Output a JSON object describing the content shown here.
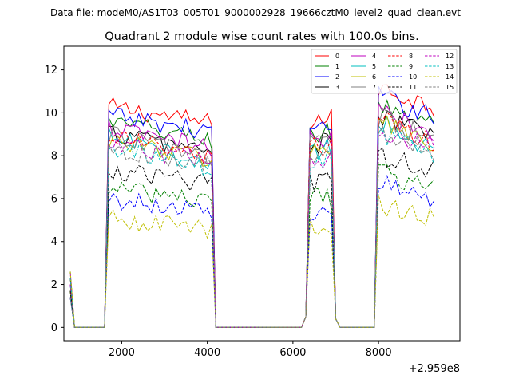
{
  "suptitle": "Data file: modeM0/AS1T03_005T01_9000002928_19666cztM0_level2_quad_clean.evt",
  "chart_data": {
    "type": "line",
    "title": "Quadrant 2 module wise count rates with 100.0s bins.",
    "xlabel": "",
    "ylabel": "",
    "xlim": [
      650,
      9900
    ],
    "ylim": [
      -0.62,
      13.1
    ],
    "x_offset_label": "+2.959e8",
    "xticks": [
      2000,
      4000,
      6000,
      8000
    ],
    "xtick_labels": [
      "2000",
      "4000",
      "6000",
      "8000"
    ],
    "yticks": [
      0,
      2,
      4,
      6,
      8,
      10,
      12
    ],
    "ytick_labels": [
      "0",
      "2",
      "4",
      "6",
      "8",
      "10",
      "12"
    ],
    "grid": false,
    "legend_position": "top-right",
    "segments": [
      {
        "start": 800,
        "end": 4100
      },
      {
        "start": 6400,
        "end": 6900
      },
      {
        "start": 8050,
        "end": 9350
      }
    ],
    "series": [
      {
        "name": "0",
        "color": "#ff0000",
        "dash": "solid",
        "peak": 10.3,
        "drift": 0.8
      },
      {
        "name": "1",
        "color": "#008000",
        "dash": "solid",
        "peak": 9.6,
        "drift": 0.9
      },
      {
        "name": "2",
        "color": "#0000ff",
        "dash": "solid",
        "peak": 9.9,
        "drift": 0.8
      },
      {
        "name": "3",
        "color": "#000000",
        "dash": "solid",
        "peak": 9.1,
        "drift": 0.9
      },
      {
        "name": "4",
        "color": "#bf00bf",
        "dash": "solid",
        "peak": 9.3,
        "drift": 1.0
      },
      {
        "name": "5",
        "color": "#00bfbf",
        "dash": "solid",
        "peak": 8.9,
        "drift": 1.4
      },
      {
        "name": "6",
        "color": "#bfbf00",
        "dash": "solid",
        "peak": 8.8,
        "drift": 1.0
      },
      {
        "name": "7",
        "color": "#808080",
        "dash": "solid",
        "peak": 9.0,
        "drift": 1.0
      },
      {
        "name": "8",
        "color": "#ff0000",
        "dash": "dashed",
        "peak": 9.0,
        "drift": 1.2
      },
      {
        "name": "9",
        "color": "#008000",
        "dash": "dashed",
        "peak": 6.5,
        "drift": 0.6
      },
      {
        "name": "10",
        "color": "#0000ff",
        "dash": "dashed",
        "peak": 6.0,
        "drift": 0.6
      },
      {
        "name": "11",
        "color": "#000000",
        "dash": "dashed",
        "peak": 7.3,
        "drift": 0.6
      },
      {
        "name": "12",
        "color": "#bf00bf",
        "dash": "dashed",
        "peak": 8.5,
        "drift": 0.8
      },
      {
        "name": "13",
        "color": "#00bfbf",
        "dash": "dashed",
        "peak": 8.3,
        "drift": 0.9
      },
      {
        "name": "14",
        "color": "#bfbf00",
        "dash": "dashed",
        "peak": 5.1,
        "drift": 0.6
      },
      {
        "name": "15",
        "color": "#808080",
        "dash": "dashed",
        "peak": 8.4,
        "drift": 0.9
      }
    ]
  }
}
